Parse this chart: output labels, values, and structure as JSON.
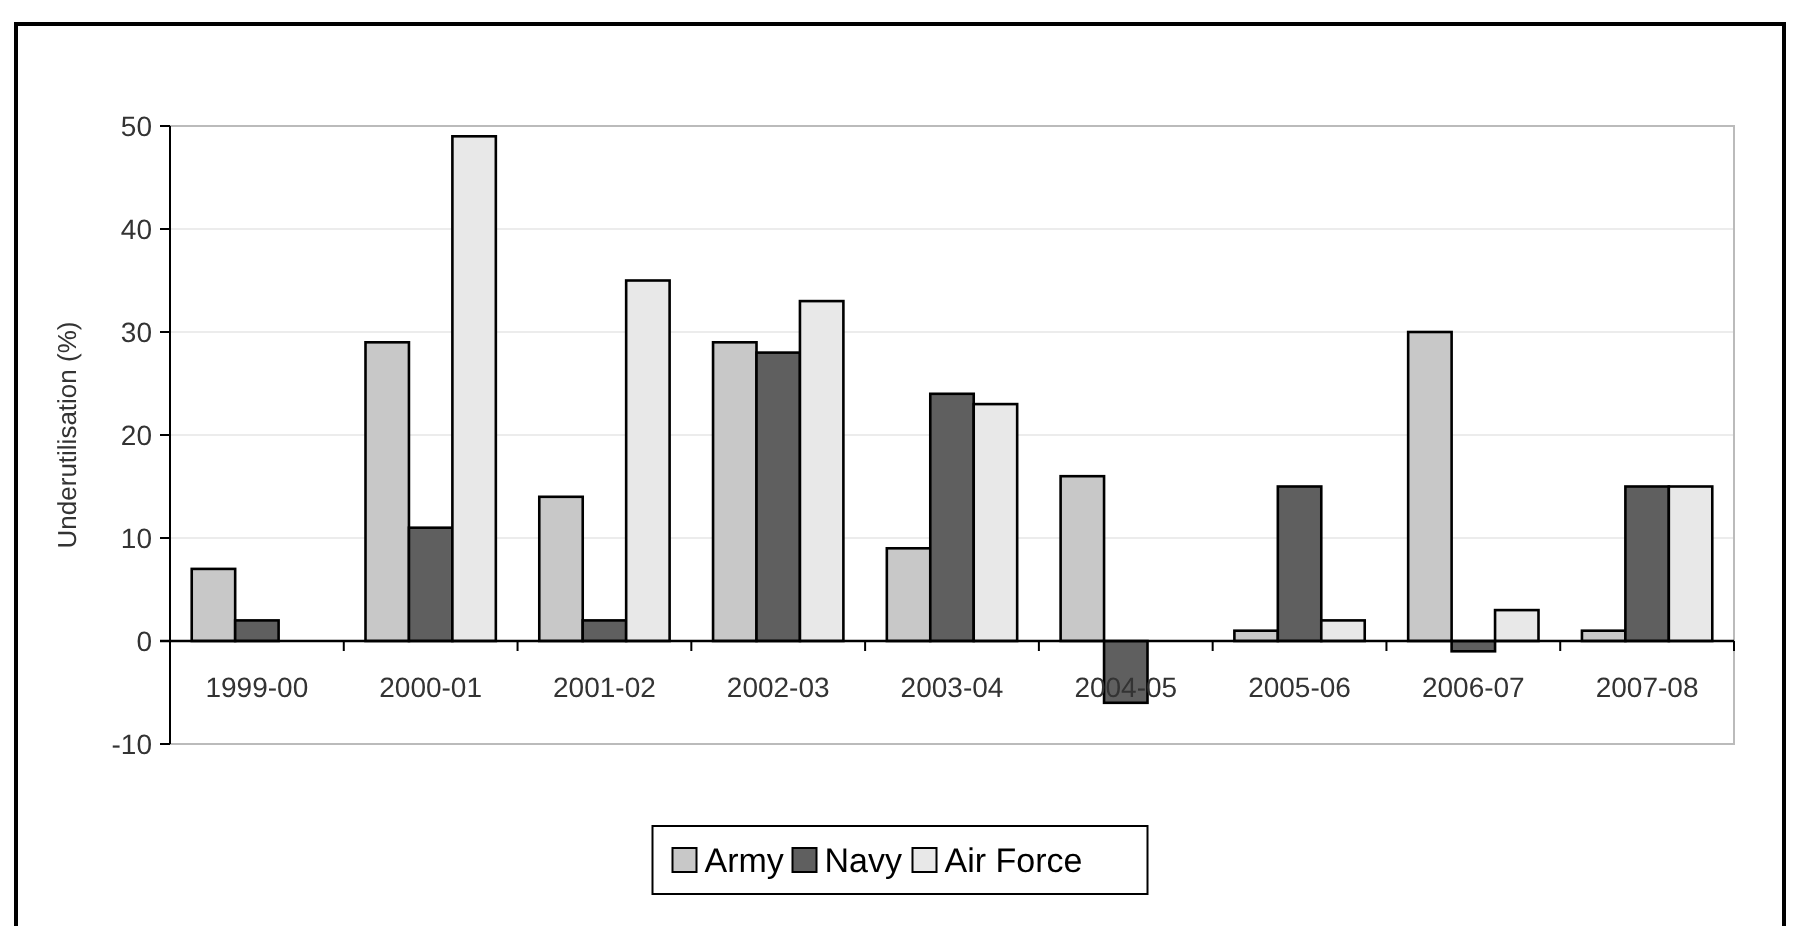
{
  "chart_data": {
    "type": "bar",
    "ylabel": "Underutilisation (%)",
    "categories": [
      "1999-00",
      "2000-01",
      "2001-02",
      "2002-03",
      "2003-04",
      "2004-05",
      "2005-06",
      "2006-07",
      "2007-08"
    ],
    "series": [
      {
        "name": "Army",
        "color": "#c8c8c8",
        "values": [
          7,
          29,
          14,
          29,
          9,
          16,
          1,
          30,
          1
        ]
      },
      {
        "name": "Navy",
        "color": "#5f5f5f",
        "values": [
          2,
          11,
          2,
          28,
          24,
          -6,
          15,
          -1,
          15
        ]
      },
      {
        "name": "Air Force",
        "color": "#e8e8e8",
        "values": [
          null,
          49,
          35,
          33,
          23,
          null,
          2,
          3,
          15
        ]
      }
    ],
    "ylim": [
      -10,
      50
    ],
    "yticks": [
      -10,
      0,
      10,
      20,
      30,
      40,
      50
    ],
    "grid": "y",
    "legend": "bottom"
  }
}
